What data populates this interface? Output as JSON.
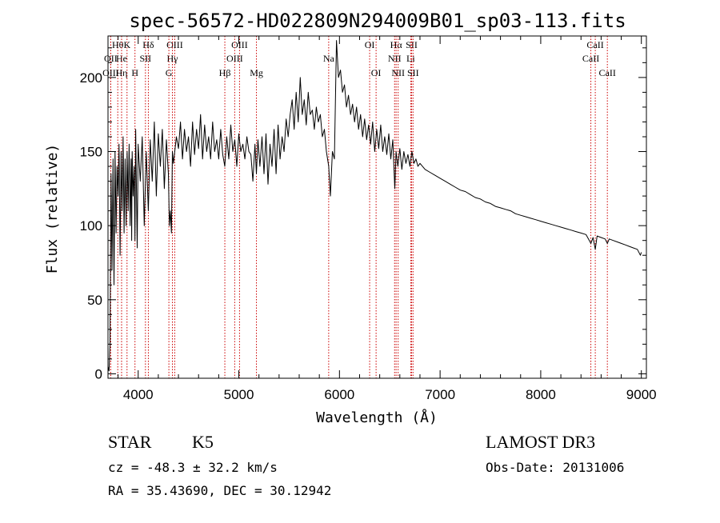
{
  "chart_data": {
    "type": "line",
    "title": "spec-56572-HD022809N294009B01_sp03-113.fits",
    "xlabel": "Wavelength (Å)",
    "ylabel": "Flux (relative)",
    "xlim": [
      3700,
      9050
    ],
    "ylim": [
      -3,
      228
    ],
    "x_ticks": [
      4000,
      5000,
      6000,
      7000,
      8000,
      9000
    ],
    "y_ticks": [
      0,
      50,
      100,
      150,
      200
    ],
    "series": [
      {
        "name": "flux",
        "x": [
          3700,
          3710,
          3720,
          3730,
          3740,
          3750,
          3760,
          3770,
          3780,
          3790,
          3800,
          3810,
          3820,
          3830,
          3840,
          3850,
          3860,
          3870,
          3880,
          3890,
          3900,
          3910,
          3920,
          3930,
          3935,
          3940,
          3950,
          3960,
          3968,
          3975,
          3990,
          4000,
          4020,
          4040,
          4060,
          4080,
          4101,
          4120,
          4140,
          4160,
          4180,
          4200,
          4220,
          4240,
          4260,
          4280,
          4300,
          4310,
          4320,
          4330,
          4340,
          4350,
          4380,
          4400,
          4420,
          4440,
          4460,
          4480,
          4500,
          4520,
          4540,
          4560,
          4580,
          4600,
          4620,
          4640,
          4660,
          4680,
          4700,
          4720,
          4740,
          4760,
          4780,
          4800,
          4820,
          4840,
          4861,
          4880,
          4900,
          4920,
          4940,
          4960,
          4980,
          5000,
          5020,
          5040,
          5060,
          5080,
          5100,
          5120,
          5140,
          5160,
          5175,
          5190,
          5210,
          5230,
          5250,
          5270,
          5290,
          5310,
          5330,
          5350,
          5370,
          5390,
          5410,
          5430,
          5450,
          5470,
          5490,
          5510,
          5530,
          5550,
          5570,
          5590,
          5610,
          5630,
          5650,
          5670,
          5690,
          5710,
          5730,
          5750,
          5770,
          5790,
          5810,
          5830,
          5850,
          5870,
          5893,
          5910,
          5930,
          5950,
          5970,
          5990,
          6010,
          6030,
          6050,
          6070,
          6090,
          6110,
          6130,
          6150,
          6170,
          6190,
          6210,
          6230,
          6250,
          6270,
          6290,
          6310,
          6330,
          6350,
          6370,
          6390,
          6410,
          6430,
          6450,
          6470,
          6490,
          6510,
          6530,
          6550,
          6563,
          6580,
          6600,
          6620,
          6640,
          6660,
          6680,
          6700,
          6720,
          6740,
          6760,
          6780,
          6800,
          6850,
          6900,
          6950,
          7000,
          7050,
          7100,
          7150,
          7200,
          7250,
          7300,
          7350,
          7400,
          7450,
          7500,
          7550,
          7600,
          7650,
          7700,
          7750,
          7800,
          7850,
          7900,
          7950,
          8000,
          8050,
          8100,
          8150,
          8200,
          8250,
          8300,
          8350,
          8400,
          8450,
          8498,
          8520,
          8542,
          8560,
          8600,
          8640,
          8662,
          8680,
          8720,
          8760,
          8800,
          8840,
          8880,
          8920,
          8960,
          8990,
          9000
        ],
        "y": [
          5,
          2,
          20,
          135,
          70,
          145,
          60,
          150,
          95,
          140,
          120,
          155,
          80,
          150,
          110,
          160,
          95,
          145,
          100,
          150,
          110,
          155,
          100,
          145,
          90,
          150,
          120,
          140,
          90,
          165,
          85,
          155,
          130,
          160,
          100,
          150,
          110,
          158,
          130,
          170,
          120,
          162,
          140,
          165,
          125,
          158,
          135,
          100,
          110,
          95,
          150,
          142,
          160,
          152,
          170,
          145,
          165,
          150,
          160,
          140,
          170,
          148,
          165,
          152,
          175,
          145,
          168,
          150,
          160,
          145,
          170,
          150,
          158,
          145,
          165,
          148,
          140,
          160,
          145,
          168,
          150,
          158,
          140,
          162,
          150,
          155,
          145,
          160,
          150,
          148,
          130,
          155,
          135,
          158,
          140,
          160,
          135,
          162,
          128,
          155,
          140,
          165,
          135,
          168,
          145,
          160,
          150,
          172,
          160,
          175,
          185,
          165,
          190,
          170,
          200,
          175,
          185,
          168,
          190,
          175,
          178,
          165,
          180,
          170,
          175,
          160,
          165,
          150,
          140,
          120,
          150,
          145,
          225,
          200,
          205,
          190,
          195,
          180,
          188,
          175,
          182,
          170,
          180,
          165,
          175,
          160,
          172,
          158,
          168,
          155,
          170,
          150,
          165,
          152,
          168,
          150,
          160,
          148,
          162,
          145,
          158,
          125,
          150,
          140,
          152,
          138,
          150,
          142,
          148,
          140,
          150,
          142,
          145,
          140,
          142,
          138,
          136,
          134,
          132,
          130,
          128,
          126,
          124,
          123,
          121,
          119,
          118,
          116,
          115,
          113,
          112,
          111,
          110,
          108,
          107,
          106,
          105,
          104,
          103,
          102,
          101,
          100,
          99,
          98,
          97,
          96,
          95,
          94,
          88,
          92,
          84,
          93,
          92,
          91,
          88,
          91,
          90,
          89,
          88,
          87,
          86,
          85,
          84,
          80,
          82
        ]
      }
    ],
    "annotations": [
      {
        "label": "Hθ",
        "x": 3797,
        "row": 1
      },
      {
        "label": "OII",
        "x": 3727,
        "row": 2
      },
      {
        "label": "OIII",
        "x": 3727,
        "row": 3
      },
      {
        "label": "He",
        "x": 3835,
        "row": 2
      },
      {
        "label": "Hη",
        "x": 3835,
        "row": 3
      },
      {
        "label": "K",
        "x": 3889,
        "row": 1
      },
      {
        "label": "H",
        "x": 3968,
        "row": 3
      },
      {
        "label": "Hδ",
        "x": 4101,
        "row": 1
      },
      {
        "label": "SII",
        "x": 4072,
        "row": 2
      },
      {
        "label": "OIII",
        "x": 4363,
        "row": 1
      },
      {
        "label": "Hγ",
        "x": 4340,
        "row": 2
      },
      {
        "label": "G",
        "x": 4305,
        "row": 3
      },
      {
        "label": "Hβ",
        "x": 4861,
        "row": 3
      },
      {
        "label": "OIII",
        "x": 5007,
        "row": 1
      },
      {
        "label": "OIII",
        "x": 4959,
        "row": 2
      },
      {
        "label": "Mg",
        "x": 5175,
        "row": 3
      },
      {
        "label": "Na",
        "x": 5893,
        "row": 2
      },
      {
        "label": "OI",
        "x": 6300,
        "row": 1
      },
      {
        "label": "OI",
        "x": 6364,
        "row": 3
      },
      {
        "label": "Hα",
        "x": 6563,
        "row": 1
      },
      {
        "label": "NII",
        "x": 6548,
        "row": 2
      },
      {
        "label": "NII",
        "x": 6583,
        "row": 3
      },
      {
        "label": "SII",
        "x": 6717,
        "row": 1
      },
      {
        "label": "Li",
        "x": 6708,
        "row": 2
      },
      {
        "label": "SII",
        "x": 6731,
        "row": 3
      },
      {
        "label": "CaII",
        "x": 8542,
        "row": 1
      },
      {
        "label": "CaII",
        "x": 8498,
        "row": 2
      },
      {
        "label": "CaII",
        "x": 8662,
        "row": 3
      }
    ]
  },
  "info": {
    "object_type": "STAR",
    "subclass": "K5",
    "survey": "LAMOST DR3",
    "redshift": "cz = -48.3 ± 32.2 km/s",
    "obs_date": "Obs-Date: 20131006",
    "coords": "RA =  35.43690, DEC =  30.12942"
  },
  "colors": {
    "line": "#000000",
    "marker": "#cc0000",
    "background": "#ffffff"
  }
}
